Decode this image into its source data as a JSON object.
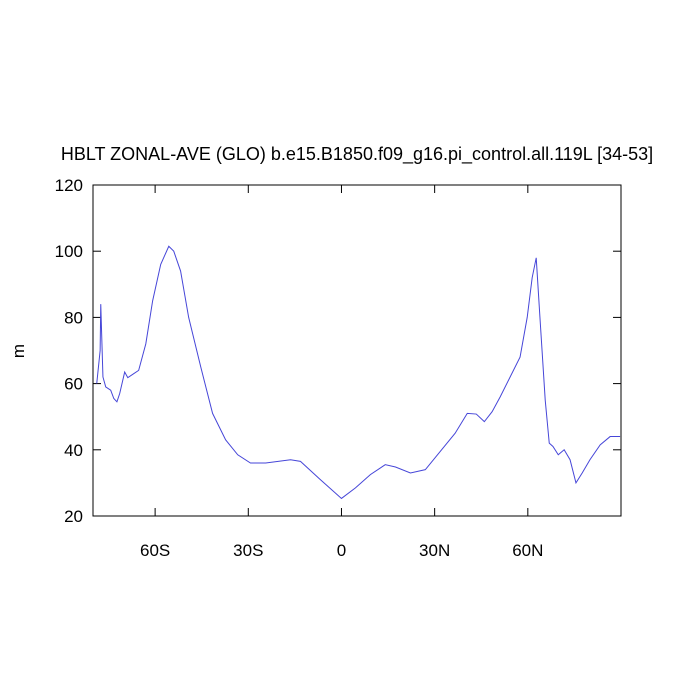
{
  "chart_data": {
    "type": "line",
    "title": "HBLT ZONAL-AVE (GLO) b.e15.B1850.f09_g16.pi_control.all.119L [34-53]",
    "ylabel": "m",
    "xlim": [
      -80,
      90
    ],
    "ylim": [
      20,
      120
    ],
    "xticks": [
      {
        "value": -60,
        "label": "60S"
      },
      {
        "value": -30,
        "label": "30S"
      },
      0,
      {
        "value": 30,
        "label": "30N"
      },
      {
        "value": 60,
        "label": "60N"
      }
    ],
    "yticks": [
      20,
      40,
      60,
      80,
      100,
      120
    ],
    "grid": false,
    "series": [
      {
        "color": "#4646d8",
        "x": [
          -78.8,
          -77.7,
          -77.5,
          -76.8,
          -75.9,
          -74.3,
          -73.3,
          -72.3,
          -71.4,
          -69.8,
          -68.8,
          -66.9,
          -65.3,
          -63,
          -60.8,
          -58.2,
          -55.6,
          -54,
          -51.8,
          -49.2,
          -45.3,
          -41.5,
          -37.3,
          -33.4,
          -29.3,
          -24.4,
          -16.4,
          -13.2,
          -6.8,
          0,
          4.5,
          9.3,
          14.1,
          17.4,
          22.2,
          27,
          31.8,
          36.6,
          40.5,
          43.4,
          46,
          48.5,
          51.1,
          54.3,
          57.5,
          59.8,
          61.4,
          62.7,
          63.9,
          65.6,
          66.9,
          68.1,
          69.8,
          71.7,
          73.6,
          75.5,
          77.5,
          80,
          83.3,
          86.5,
          89.7
        ],
        "values": [
          60,
          70,
          84,
          62,
          59,
          58,
          55.5,
          54.5,
          57,
          63.5,
          61.8,
          63,
          64,
          72,
          85,
          96,
          101.5,
          100,
          94,
          80,
          65,
          51,
          43,
          38.5,
          36,
          36,
          37,
          36.5,
          31,
          25.3,
          28.5,
          32.5,
          35.5,
          34.8,
          33,
          34,
          39.5,
          45,
          51,
          50.8,
          48.5,
          51.5,
          56,
          62,
          68,
          80,
          92,
          98,
          80,
          55,
          42,
          41,
          38.5,
          40,
          37,
          30,
          33,
          37,
          41.5,
          44,
          44
        ]
      }
    ]
  }
}
